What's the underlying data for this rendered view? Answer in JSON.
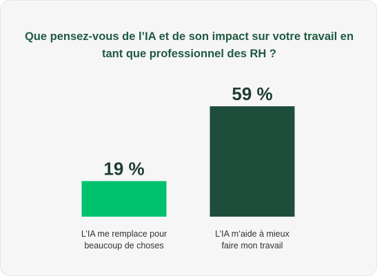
{
  "chart_data": {
    "type": "bar",
    "title": "Que pensez-vous de l’IA et de son impact sur votre travail en tant que professionnel des RH ?",
    "categories": [
      [
        "L’IA me remplace pour",
        "beaucoup de choses"
      ],
      [
        "L’IA m’aide à mieux",
        "faire mon travail"
      ]
    ],
    "values": [
      19,
      59
    ],
    "value_labels": [
      "19 %",
      "59 %"
    ],
    "colors": [
      "#00c16e",
      "#1f4d3c"
    ],
    "ylim": [
      0,
      59
    ],
    "grid": false,
    "legend": "none"
  }
}
